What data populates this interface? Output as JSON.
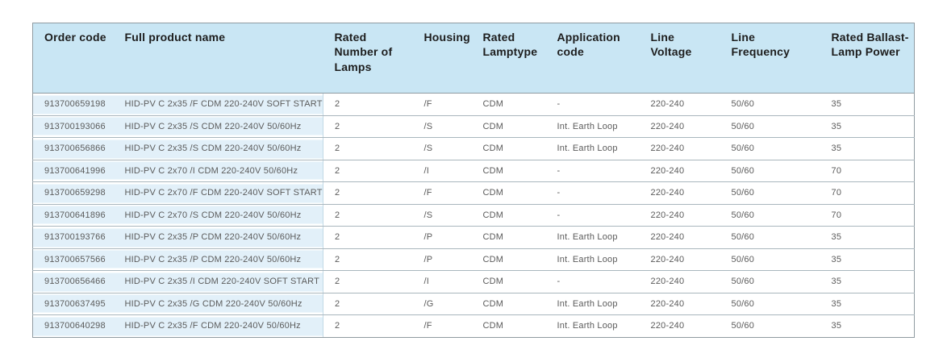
{
  "theme": {
    "header_bg": "#c9e6f4",
    "row_accent_bg": "#e2f0f9",
    "outer_border": "#8f9ba1",
    "row_divider": "#a9b6bd",
    "accent_divider": "#c2d9e6",
    "header_text": "#1d1d1d",
    "cell_text": "#5b5b5b",
    "page_bg": "#ffffff"
  },
  "table": {
    "columns": [
      {
        "key": "order-code",
        "label": "Order code"
      },
      {
        "key": "full-product-name",
        "label": "Full product name"
      },
      {
        "key": "rated-number-of-lamps",
        "label": "Rated Number of Lamps"
      },
      {
        "key": "housing",
        "label": "Housing"
      },
      {
        "key": "rated-lamptype",
        "label": "Rated Lamptype"
      },
      {
        "key": "application-code",
        "label": "Application code"
      },
      {
        "key": "line-voltage",
        "label": "Line Voltage"
      },
      {
        "key": "line-frequency",
        "label": "Line Frequency"
      },
      {
        "key": "rated-ballast-lamp-power",
        "label": "Rated Ballast-Lamp Power"
      }
    ],
    "rows": [
      [
        "913700659198",
        "HID-PV C 2x35 /F CDM 220-240V SOFT START",
        "2",
        "/F",
        "CDM",
        "-",
        "220-240",
        "50/60",
        "35"
      ],
      [
        "913700193066",
        "HID-PV C 2x35 /S CDM 220-240V 50/60Hz",
        "2",
        "/S",
        "CDM",
        "Int. Earth Loop",
        "220-240",
        "50/60",
        "35"
      ],
      [
        "913700656866",
        "HID-PV C 2x35 /S CDM 220-240V 50/60Hz",
        "2",
        "/S",
        "CDM",
        "Int. Earth Loop",
        "220-240",
        "50/60",
        "35"
      ],
      [
        "913700641996",
        "HID-PV C 2x70 /I CDM 220-240V 50/60Hz",
        "2",
        "/I",
        "CDM",
        "-",
        "220-240",
        "50/60",
        "70"
      ],
      [
        "913700659298",
        "HID-PV C 2x70 /F CDM 220-240V SOFT START",
        "2",
        "/F",
        "CDM",
        "-",
        "220-240",
        "50/60",
        "70"
      ],
      [
        "913700641896",
        "HID-PV C 2x70 /S CDM 220-240V 50/60Hz",
        "2",
        "/S",
        "CDM",
        "-",
        "220-240",
        "50/60",
        "70"
      ],
      [
        "913700193766",
        "HID-PV C 2x35 /P CDM 220-240V 50/60Hz",
        "2",
        "/P",
        "CDM",
        "Int. Earth Loop",
        "220-240",
        "50/60",
        "35"
      ],
      [
        "913700657566",
        "HID-PV C 2x35 /P CDM 220-240V 50/60Hz",
        "2",
        "/P",
        "CDM",
        "Int. Earth Loop",
        "220-240",
        "50/60",
        "35"
      ],
      [
        "913700656466",
        "HID-PV C 2x35 /I CDM 220-240V SOFT START",
        "2",
        "/I",
        "CDM",
        "-",
        "220-240",
        "50/60",
        "35"
      ],
      [
        "913700637495",
        "HID-PV C 2x35 /G CDM 220-240V 50/60Hz",
        "2",
        "/G",
        "CDM",
        "Int. Earth Loop",
        "220-240",
        "50/60",
        "35"
      ],
      [
        "913700640298",
        "HID-PV C 2x35 /F CDM 220-240V 50/60Hz",
        "2",
        "/F",
        "CDM",
        "Int. Earth Loop",
        "220-240",
        "50/60",
        "35"
      ]
    ]
  }
}
